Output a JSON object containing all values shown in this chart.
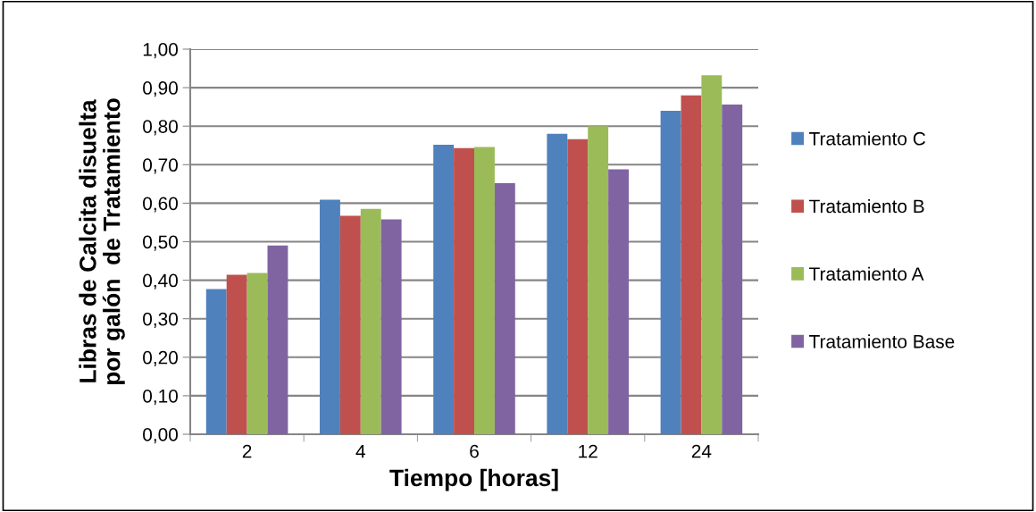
{
  "chart_data": {
    "type": "bar",
    "xlabel": "Tiempo [horas]",
    "ylabel": "Libras de Calcita disuelta\npor galón  de Tratamiento",
    "categories": [
      "2",
      "4",
      "6",
      "12",
      "24"
    ],
    "series": [
      {
        "name": "Tratamiento C",
        "color": "#4f81bd",
        "values": [
          0.377,
          0.609,
          0.752,
          0.78,
          0.84
        ]
      },
      {
        "name": "Tratamiento B",
        "color": "#c0504d",
        "values": [
          0.414,
          0.567,
          0.743,
          0.766,
          0.88
        ]
      },
      {
        "name": "Tratamiento A",
        "color": "#9bbb59",
        "values": [
          0.419,
          0.585,
          0.746,
          0.8,
          0.932
        ]
      },
      {
        "name": "Tratamiento Base",
        "color": "#8064a2",
        "values": [
          0.49,
          0.558,
          0.652,
          0.688,
          0.856
        ]
      }
    ],
    "ylim": [
      0,
      1
    ],
    "yticks": [
      {
        "value": 0,
        "label": "0,00"
      },
      {
        "value": 0.1,
        "label": "0,10"
      },
      {
        "value": 0.2,
        "label": "0,20"
      },
      {
        "value": 0.3,
        "label": "0,30"
      },
      {
        "value": 0.4,
        "label": "0,40"
      },
      {
        "value": 0.5,
        "label": "0,50"
      },
      {
        "value": 0.6,
        "label": "0,60"
      },
      {
        "value": 0.7,
        "label": "0,70"
      },
      {
        "value": 0.8,
        "label": "0,80"
      },
      {
        "value": 0.9,
        "label": "0,90"
      },
      {
        "value": 1,
        "label": "1,00"
      }
    ],
    "grid": "y",
    "legend": "right"
  }
}
